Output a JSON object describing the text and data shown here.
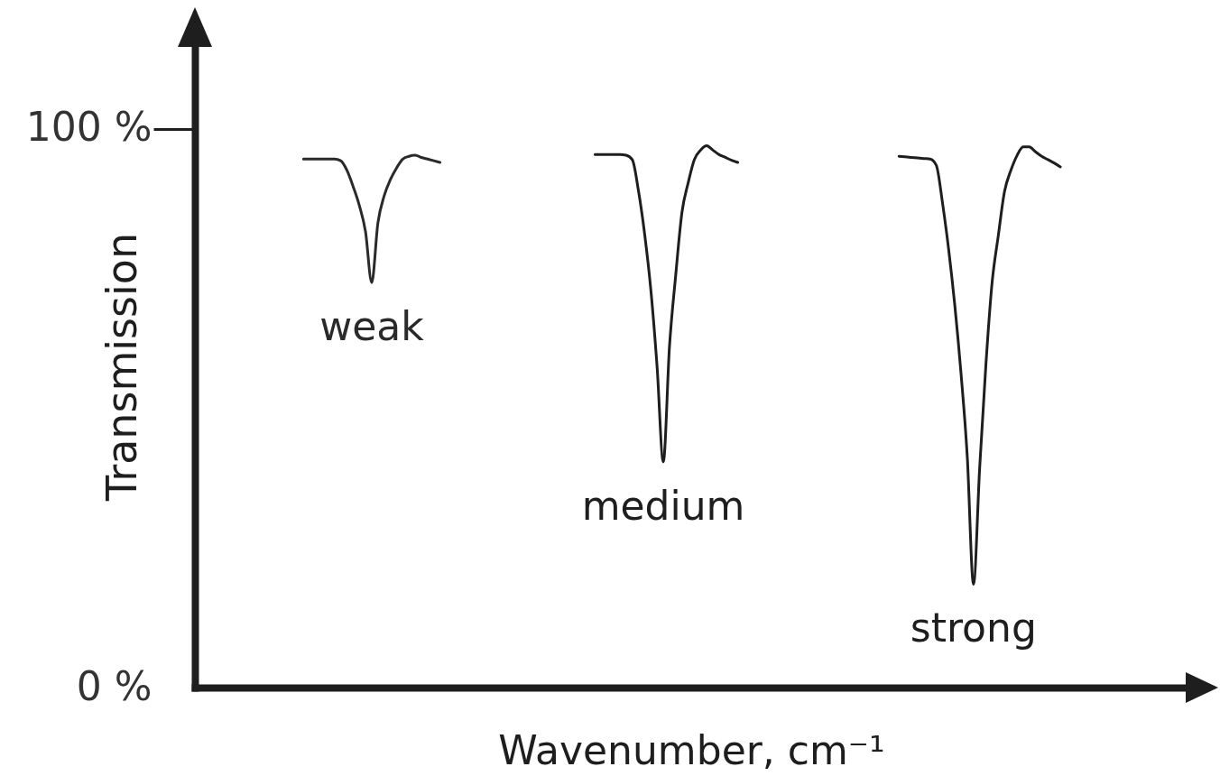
{
  "chart_data": {
    "type": "line",
    "xlabel": "Wavenumber, cm⁻¹",
    "ylabel": "Transmission",
    "categories": [
      null,
      null,
      null,
      null,
      null,
      null,
      null,
      null,
      null,
      null,
      null,
      null,
      null,
      null,
      null,
      null,
      null,
      null,
      null,
      null,
      null,
      null,
      null,
      null,
      null,
      null,
      null,
      null,
      null,
      null,
      null,
      null,
      null,
      null,
      null,
      null,
      null,
      null,
      null,
      null,
      null,
      null,
      null,
      null,
      null,
      null,
      null,
      null,
      null,
      null,
      null,
      null,
      null,
      null,
      null,
      null,
      null,
      null,
      null,
      null,
      null,
      null,
      null,
      null,
      null,
      null,
      null,
      null,
      null,
      null,
      null,
      null,
      null,
      null,
      null,
      null,
      null,
      null,
      null,
      null,
      null,
      null,
      null,
      null,
      null,
      null,
      null,
      null,
      null,
      null,
      null,
      null,
      null,
      null,
      null,
      null,
      null,
      null,
      null,
      null,
      null,
      null,
      null,
      null,
      null,
      null,
      null,
      null,
      null,
      null,
      null,
      null,
      null,
      null,
      null,
      null,
      null,
      null,
      null,
      null,
      null,
      null,
      null,
      null,
      null,
      null,
      null,
      null,
      null,
      null,
      null,
      null,
      null,
      null,
      null,
      null,
      null,
      null,
      null,
      null,
      null,
      null,
      null,
      null,
      null,
      null,
      null,
      null,
      null,
      null,
      null,
      null,
      null,
      null,
      null,
      null,
      null,
      null,
      null,
      null
    ],
    "series": [
      {
        "name": "weak",
        "color": "#2a2a2a",
        "values": [
          null,
          null,
          null,
          null,
          null,
          null,
          null,
          null,
          null,
          null,
          null,
          null,
          null,
          null,
          null,
          null,
          null,
          94.6,
          94.6,
          94.6,
          94.6,
          94.6,
          94.6,
          94.3,
          92.6,
          89.7,
          86.3,
          81.6,
          72.5,
          83.2,
          88.0,
          90.9,
          93.0,
          94.6,
          95.1,
          95.3,
          94.9,
          94.6,
          94.3,
          94.0,
          null,
          null,
          null,
          null,
          null,
          null,
          null,
          null,
          null,
          null,
          null,
          null,
          null,
          null,
          null,
          null,
          null,
          null,
          null,
          null,
          null,
          null,
          null,
          null,
          null,
          null,
          null,
          null,
          null,
          null,
          null,
          null,
          null,
          null,
          null,
          null,
          null,
          null,
          null,
          null,
          null,
          null,
          null,
          null,
          null,
          null,
          null,
          null,
          null,
          null,
          null,
          null,
          null,
          null,
          null,
          null,
          null,
          null,
          null,
          null,
          null,
          null,
          null,
          null,
          null,
          null,
          null,
          null,
          null,
          null,
          null,
          null,
          null,
          null,
          null,
          null,
          null,
          null,
          null,
          null,
          null,
          null,
          null,
          null,
          null,
          null,
          null,
          null,
          null,
          null,
          null,
          null,
          null,
          null,
          null,
          null,
          null,
          null,
          null,
          null,
          null,
          null,
          null,
          null,
          null,
          null,
          null,
          null,
          null,
          null,
          null,
          null,
          null,
          null,
          null,
          null,
          null,
          null,
          null,
          null
        ]
      },
      {
        "name": "medium",
        "color": "#1e1e1e",
        "values": [
          null,
          null,
          null,
          null,
          null,
          null,
          null,
          null,
          null,
          null,
          null,
          null,
          null,
          null,
          null,
          null,
          null,
          null,
          null,
          null,
          null,
          null,
          null,
          null,
          null,
          null,
          null,
          null,
          null,
          null,
          null,
          null,
          null,
          null,
          null,
          null,
          null,
          null,
          null,
          null,
          null,
          null,
          null,
          null,
          null,
          null,
          null,
          null,
          null,
          null,
          null,
          null,
          null,
          null,
          null,
          null,
          null,
          null,
          null,
          null,
          null,
          null,
          null,
          null,
          95.4,
          95.4,
          95.4,
          95.4,
          95.4,
          95.3,
          94.5,
          88.9,
          81.1,
          71.1,
          57.4,
          40.4,
          61.1,
          73.8,
          85.0,
          90.3,
          94.5,
          96.2,
          97.0,
          96.2,
          95.4,
          94.9,
          94.4,
          94.0,
          null,
          null,
          null,
          null,
          null,
          null,
          null,
          null,
          null,
          null,
          null,
          null,
          null,
          null,
          null,
          null,
          null,
          null,
          null,
          null,
          null,
          null,
          null,
          null,
          null,
          null,
          null,
          null,
          null,
          null,
          null,
          null,
          null,
          null,
          null,
          null,
          null,
          null,
          null,
          null,
          null,
          null,
          null,
          null,
          null,
          null,
          null,
          null,
          null,
          null,
          null,
          null,
          null,
          null,
          null,
          null,
          null,
          null,
          null,
          null,
          null,
          null,
          null,
          null,
          null,
          null,
          null,
          null,
          null,
          null,
          null,
          null
        ]
      },
      {
        "name": "strong",
        "color": "#1e1e1e",
        "values": [
          null,
          null,
          null,
          null,
          null,
          null,
          null,
          null,
          null,
          null,
          null,
          null,
          null,
          null,
          null,
          null,
          null,
          null,
          null,
          null,
          null,
          null,
          null,
          null,
          null,
          null,
          null,
          null,
          null,
          null,
          null,
          null,
          null,
          null,
          null,
          null,
          null,
          null,
          null,
          null,
          null,
          null,
          null,
          null,
          null,
          null,
          null,
          null,
          null,
          null,
          null,
          null,
          null,
          null,
          null,
          null,
          null,
          null,
          null,
          null,
          null,
          null,
          null,
          null,
          null,
          null,
          null,
          null,
          null,
          null,
          null,
          null,
          null,
          null,
          null,
          null,
          null,
          null,
          null,
          null,
          null,
          null,
          null,
          null,
          null,
          null,
          null,
          null,
          null,
          null,
          null,
          null,
          null,
          null,
          null,
          null,
          null,
          null,
          null,
          null,
          null,
          null,
          null,
          null,
          null,
          null,
          null,
          null,
          null,
          null,
          null,
          null,
          null,
          95.1,
          95.0,
          94.9,
          94.8,
          94.7,
          94.6,
          93.5,
          86.8,
          78.4,
          68.3,
          56.1,
          41.3,
          18.5,
          39.4,
          57.8,
          72.5,
          80.9,
          88.8,
          92.5,
          95.2,
          96.8,
          96.8,
          95.9,
          95.1,
          94.5,
          93.9,
          93.2,
          null,
          null,
          null,
          null,
          null,
          null,
          null,
          null,
          null,
          null,
          null,
          null,
          null,
          null,
          null,
          null,
          null,
          null,
          null,
          null
        ]
      }
    ],
    "ylim": [
      0,
      115
    ],
    "yticks": [
      {
        "value": 0,
        "label": "0 %"
      },
      {
        "value": 100,
        "label": "100 %"
      }
    ],
    "tick_labels": "y"
  }
}
